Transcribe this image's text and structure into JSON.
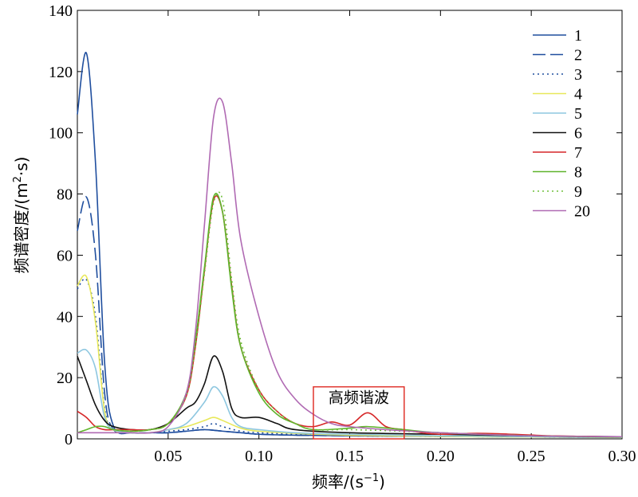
{
  "chart_data": {
    "type": "line",
    "title": "",
    "xlabel": "频率/(s",
    "xlabel_sup": "−1",
    "xlabel_tail": ")",
    "ylabel": "频谱密度/(m",
    "ylabel_sup": "2",
    "ylabel_tail": "·s)",
    "xlim": [
      0,
      0.3
    ],
    "ylim": [
      0,
      140
    ],
    "x_ticks": [
      0.05,
      0.1,
      0.15,
      0.2,
      0.25,
      0.3
    ],
    "x_tick_labels": [
      "0.05",
      "0.10",
      "0.15",
      "0.20",
      "0.25",
      "0.30"
    ],
    "y_ticks": [
      0,
      20,
      40,
      60,
      80,
      100,
      120,
      140
    ],
    "y_tick_labels": [
      "0",
      "20",
      "40",
      "60",
      "80",
      "100",
      "120",
      "140"
    ],
    "grid": false,
    "legend_position": "top-right",
    "annotation": {
      "text": "高频谐波",
      "box_color": "#e0342c",
      "x_range": [
        0.13,
        0.18
      ],
      "y_range": [
        0,
        17
      ]
    },
    "series": [
      {
        "name": "1",
        "color": "#1f4e9e",
        "dash": "solid",
        "x": [
          0,
          0.005,
          0.01,
          0.015,
          0.02,
          0.03,
          0.04,
          0.05,
          0.06,
          0.07,
          0.08,
          0.09,
          0.1,
          0.12,
          0.15,
          0.2,
          0.25,
          0.3
        ],
        "y": [
          106,
          126,
          90,
          25,
          4,
          2,
          2,
          2,
          2.5,
          3,
          2.5,
          2,
          1.5,
          1.2,
          1,
          0.8,
          0.6,
          0.5
        ]
      },
      {
        "name": "2",
        "color": "#1f4e9e",
        "dash": "long",
        "x": [
          0,
          0.005,
          0.01,
          0.015,
          0.02,
          0.03,
          0.04,
          0.05,
          0.06,
          0.07,
          0.08,
          0.09,
          0.1,
          0.12,
          0.15,
          0.2,
          0.25,
          0.3
        ],
        "y": [
          68,
          79,
          60,
          15,
          3,
          2,
          2,
          2,
          2.5,
          3,
          2.5,
          2,
          1.5,
          1.2,
          1,
          0.8,
          0.6,
          0.5
        ]
      },
      {
        "name": "3",
        "color": "#1f4e9e",
        "dash": "dot",
        "x": [
          0,
          0.005,
          0.01,
          0.015,
          0.02,
          0.03,
          0.04,
          0.05,
          0.06,
          0.07,
          0.075,
          0.08,
          0.09,
          0.1,
          0.12,
          0.15,
          0.2,
          0.25,
          0.3
        ],
        "y": [
          49,
          52,
          40,
          10,
          3,
          2,
          2,
          2.5,
          3,
          4,
          5,
          4,
          2.5,
          2,
          1.5,
          1,
          0.8,
          0.6,
          0.5
        ]
      },
      {
        "name": "4",
        "color": "#e8e85a",
        "dash": "solid",
        "x": [
          0,
          0.005,
          0.01,
          0.015,
          0.02,
          0.03,
          0.04,
          0.05,
          0.06,
          0.07,
          0.075,
          0.08,
          0.09,
          0.1,
          0.12,
          0.15,
          0.2,
          0.25,
          0.3
        ],
        "y": [
          50,
          53,
          38,
          9,
          3,
          2,
          2,
          3,
          4,
          6,
          7,
          6,
          3.5,
          2.5,
          1.8,
          1.2,
          0.8,
          0.6,
          0.5
        ]
      },
      {
        "name": "5",
        "color": "#8ec7e0",
        "dash": "solid",
        "x": [
          0,
          0.005,
          0.01,
          0.015,
          0.02,
          0.03,
          0.04,
          0.05,
          0.06,
          0.07,
          0.075,
          0.08,
          0.085,
          0.09,
          0.1,
          0.12,
          0.15,
          0.2,
          0.25,
          0.3
        ],
        "y": [
          28,
          29,
          23,
          7,
          3,
          2,
          2,
          3,
          5,
          12,
          17,
          14,
          7,
          4,
          3,
          2,
          1.5,
          1,
          0.7,
          0.5
        ]
      },
      {
        "name": "6",
        "color": "#111111",
        "dash": "solid",
        "x": [
          0,
          0.005,
          0.01,
          0.015,
          0.02,
          0.03,
          0.04,
          0.05,
          0.06,
          0.065,
          0.07,
          0.075,
          0.08,
          0.085,
          0.09,
          0.1,
          0.11,
          0.12,
          0.15,
          0.2,
          0.25,
          0.3
        ],
        "y": [
          27,
          19,
          11,
          6,
          4,
          3,
          3,
          5,
          10,
          12,
          18,
          27,
          22,
          10,
          7,
          7,
          5,
          3,
          2,
          1.5,
          1,
          0.7
        ]
      },
      {
        "name": "7",
        "color": "#d62728",
        "dash": "solid",
        "x": [
          0,
          0.005,
          0.01,
          0.015,
          0.02,
          0.03,
          0.04,
          0.05,
          0.06,
          0.065,
          0.07,
          0.075,
          0.08,
          0.085,
          0.09,
          0.1,
          0.11,
          0.12,
          0.13,
          0.14,
          0.15,
          0.16,
          0.17,
          0.18,
          0.19,
          0.2,
          0.22,
          0.24,
          0.26,
          0.28,
          0.3
        ],
        "y": [
          9,
          7,
          4,
          3,
          3,
          3,
          3,
          5,
          14,
          30,
          55,
          78,
          74,
          50,
          30,
          16,
          9,
          5,
          4,
          5.5,
          4.5,
          8.5,
          4,
          3,
          2,
          1.5,
          1.8,
          1.5,
          1,
          0.8,
          0.6
        ]
      },
      {
        "name": "8",
        "color": "#5fb32b",
        "dash": "solid",
        "x": [
          0,
          0.005,
          0.01,
          0.015,
          0.02,
          0.03,
          0.04,
          0.05,
          0.06,
          0.065,
          0.07,
          0.075,
          0.08,
          0.085,
          0.09,
          0.1,
          0.11,
          0.12,
          0.13,
          0.15,
          0.16,
          0.18,
          0.2,
          0.25,
          0.3
        ],
        "y": [
          2,
          3,
          4,
          4,
          3,
          2.5,
          3,
          5,
          15,
          32,
          56,
          79,
          74,
          49,
          30,
          15,
          8,
          5,
          3,
          3.5,
          4,
          3,
          2,
          1,
          0.6
        ]
      },
      {
        "name": "9",
        "color": "#6fbf3a",
        "dash": "dot",
        "x": [
          0,
          0.005,
          0.01,
          0.015,
          0.02,
          0.03,
          0.04,
          0.05,
          0.06,
          0.065,
          0.07,
          0.075,
          0.08,
          0.085,
          0.09,
          0.1,
          0.11,
          0.12,
          0.13,
          0.15,
          0.18,
          0.2,
          0.25,
          0.3
        ],
        "y": [
          2,
          3,
          4,
          4,
          3,
          2.5,
          3,
          5,
          14,
          30,
          54,
          77,
          78,
          52,
          32,
          16,
          9,
          5,
          3,
          3,
          2.5,
          2,
          1,
          0.6
        ]
      },
      {
        "name": "20",
        "color": "#b06ab3",
        "dash": "solid",
        "x": [
          0,
          0.005,
          0.01,
          0.015,
          0.02,
          0.03,
          0.04,
          0.05,
          0.06,
          0.065,
          0.07,
          0.075,
          0.08,
          0.085,
          0.09,
          0.1,
          0.11,
          0.12,
          0.13,
          0.14,
          0.15,
          0.17,
          0.2,
          0.25,
          0.3
        ],
        "y": [
          2,
          2,
          2,
          2,
          2,
          2,
          2,
          4,
          15,
          35,
          70,
          105,
          110,
          90,
          65,
          40,
          22,
          13,
          8,
          5,
          4,
          3,
          2,
          1,
          0.7
        ]
      }
    ]
  }
}
